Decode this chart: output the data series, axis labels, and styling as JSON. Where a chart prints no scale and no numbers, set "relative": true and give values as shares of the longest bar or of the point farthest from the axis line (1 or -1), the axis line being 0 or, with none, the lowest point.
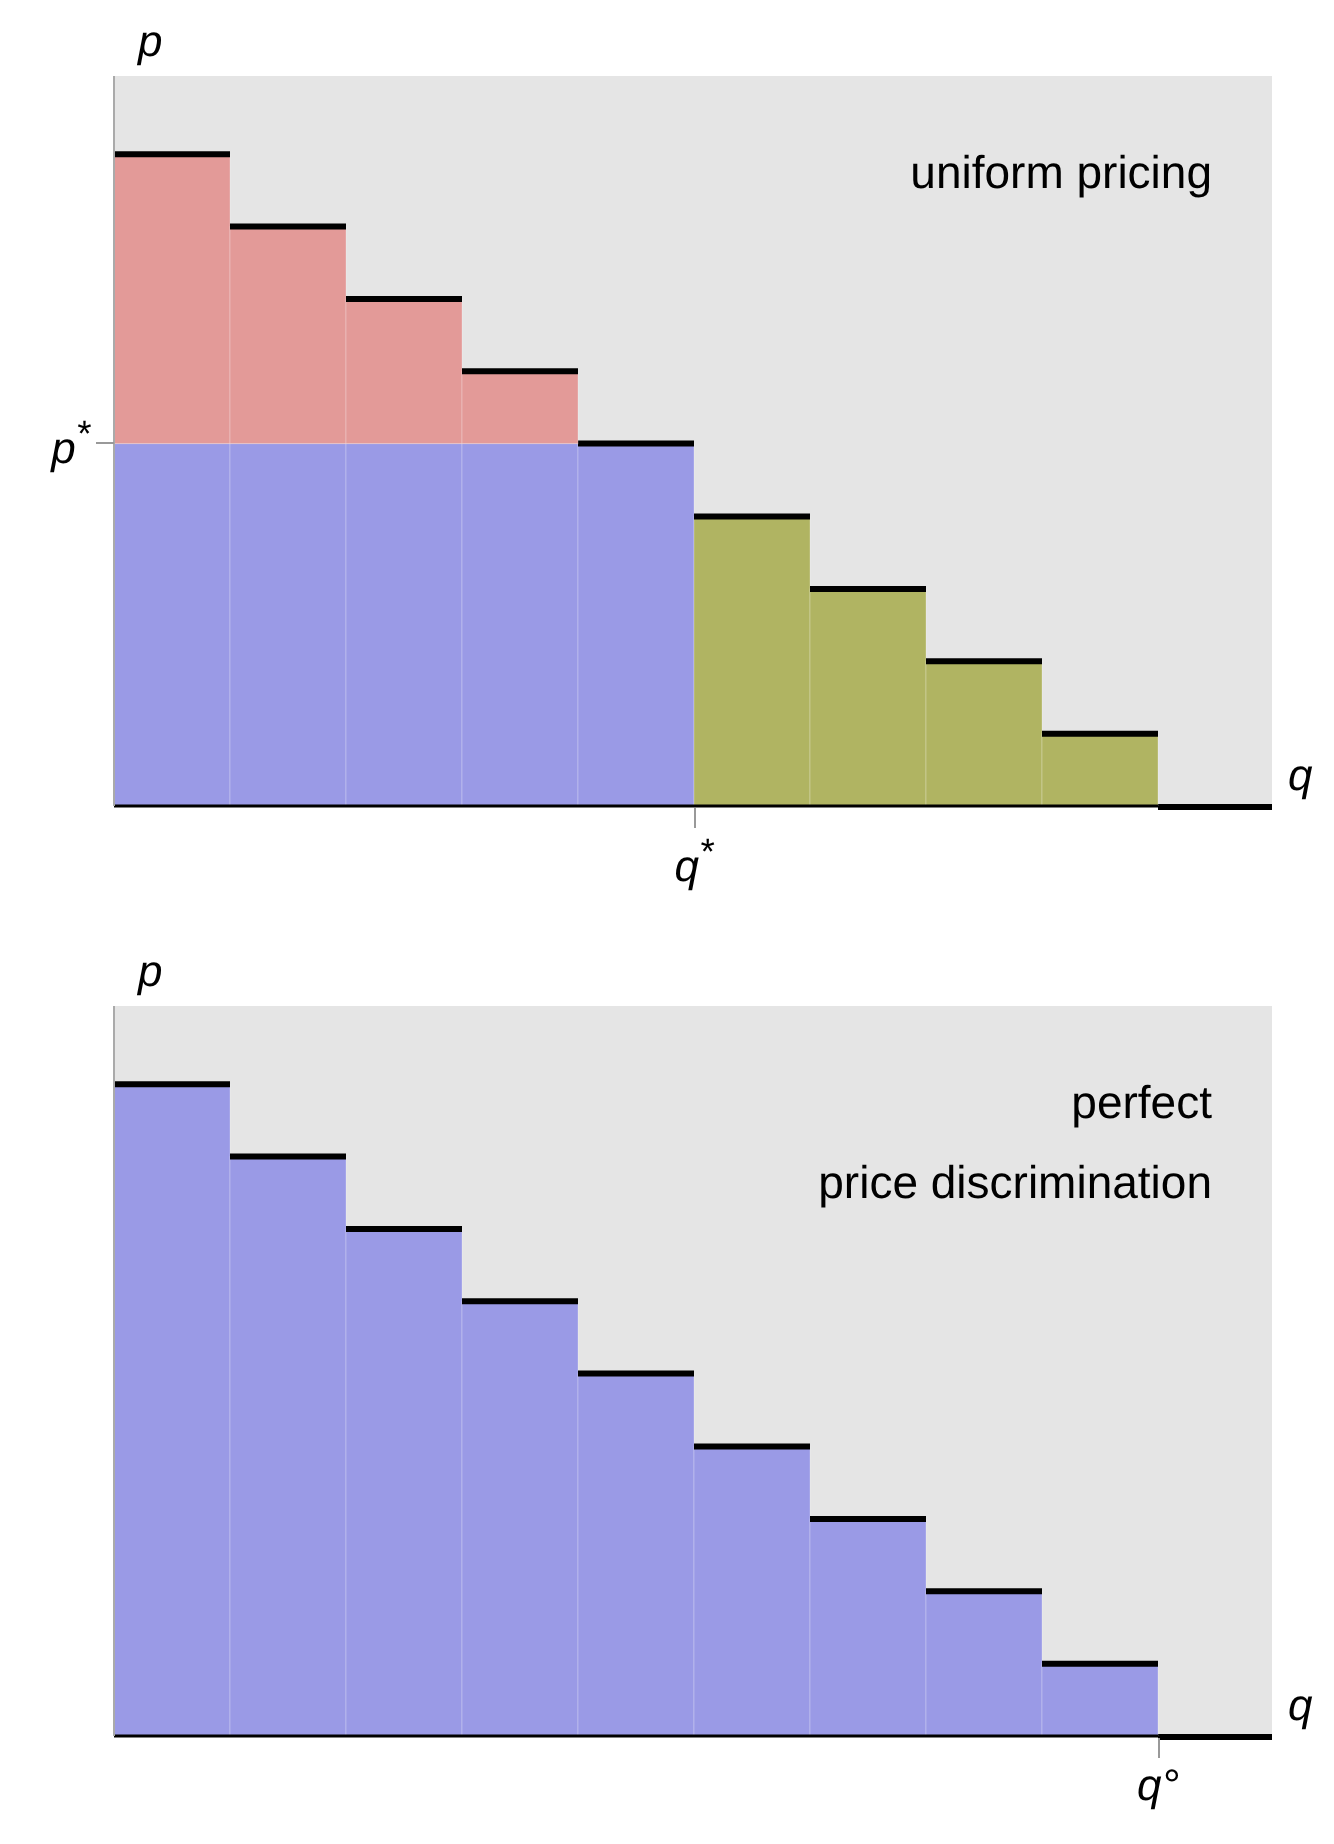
{
  "chart_data": [
    {
      "type": "bar",
      "stacked": true,
      "relative": true,
      "xlabel": "q",
      "ylabel": "p",
      "categories": [
        null,
        null,
        null,
        null,
        null,
        null,
        null,
        null,
        null
      ],
      "series": [
        {
          "color": "#9a9ae6",
          "values": [
            0.556,
            0.556,
            0.556,
            0.556,
            0.556,
            null,
            null,
            null,
            null
          ]
        },
        {
          "color": "#b0b462",
          "values": [
            null,
            null,
            null,
            null,
            null,
            0.444,
            0.333,
            0.222,
            0.111
          ]
        },
        {
          "color": "#e39a98",
          "values": [
            0.444,
            0.333,
            0.222,
            0.111,
            null,
            null,
            null,
            null,
            null
          ]
        }
      ],
      "annotations": [
        "uniform pricing",
        "p$^{*}$",
        "q$^{*}$"
      ]
    },
    {
      "type": "bar",
      "stacked": true,
      "relative": true,
      "xlabel": "q",
      "ylabel": "p",
      "categories": [
        null,
        null,
        null,
        null,
        null,
        null,
        null,
        null,
        null
      ],
      "series": [
        {
          "color": "#9a9ae6",
          "values": [
            1,
            0.889,
            0.778,
            0.667,
            0.556,
            0.444,
            0.333,
            0.222,
            0.111
          ]
        }
      ],
      "annotations": [
        "perfect\nprice discrimination",
        "q°"
      ]
    }
  ]
}
